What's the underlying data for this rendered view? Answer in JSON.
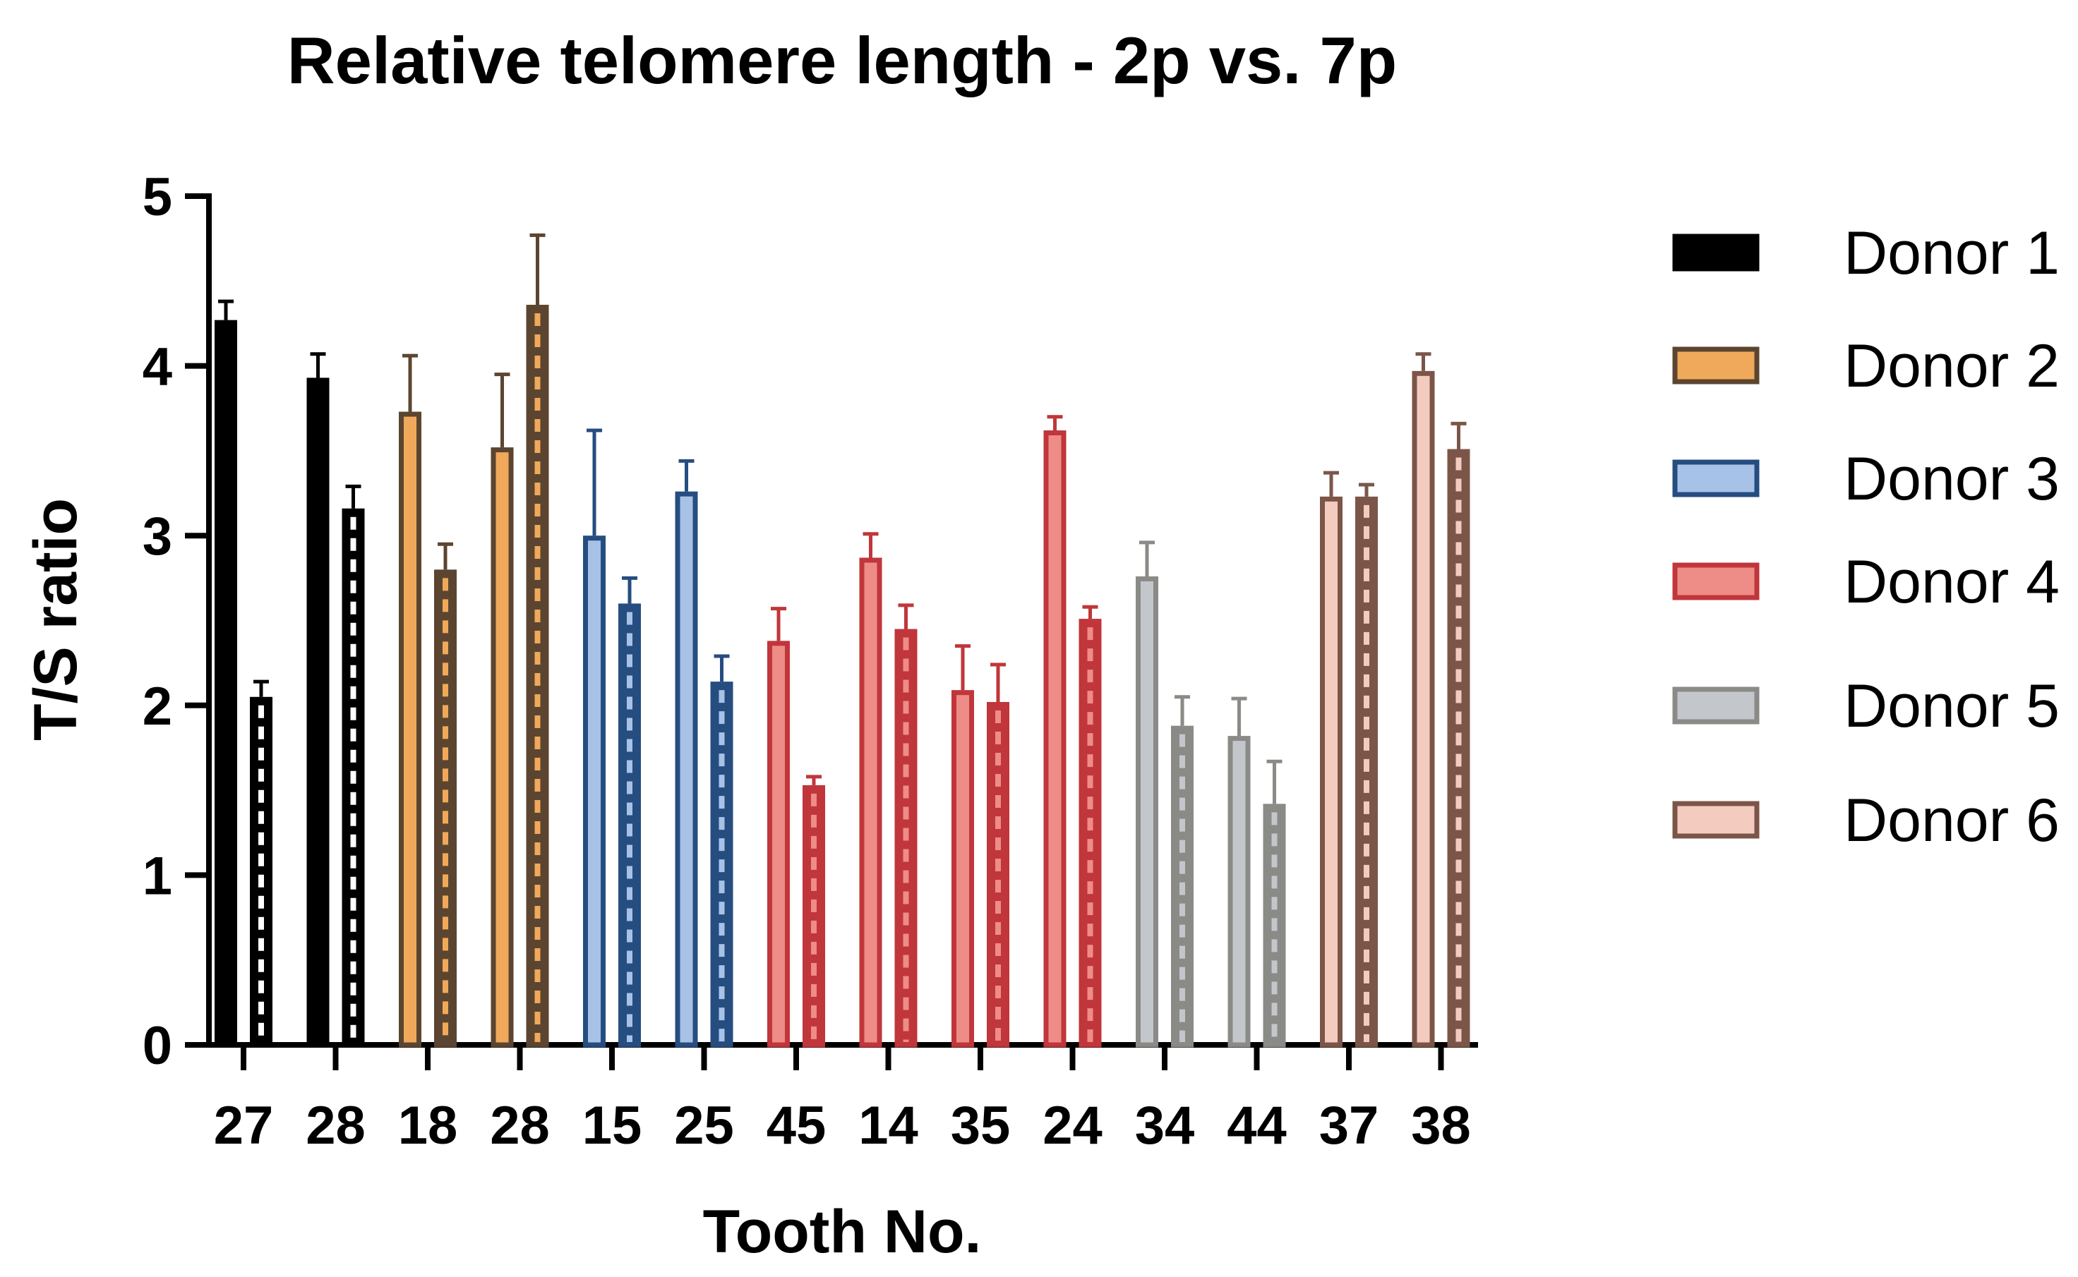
{
  "chart_data": {
    "type": "bar",
    "title": "Relative telomere length - 2p vs. 7p",
    "xlabel": "Tooth No.",
    "ylabel": "T/S ratio",
    "ylim": [
      0,
      5
    ],
    "yticks": [
      "0",
      "1",
      "2",
      "3",
      "4",
      "5"
    ],
    "legend_position": "right",
    "categories": [
      "27",
      "28",
      "18",
      "28",
      "15",
      "25",
      "45",
      "14",
      "35",
      "24",
      "34",
      "44",
      "37",
      "38"
    ],
    "category_donor": [
      1,
      1,
      2,
      2,
      3,
      3,
      4,
      4,
      4,
      4,
      5,
      5,
      6,
      6
    ],
    "series": [
      {
        "name": "2p",
        "style": "solid",
        "values": [
          4.27,
          3.93,
          3.73,
          3.52,
          3.0,
          3.26,
          2.38,
          2.87,
          2.09,
          3.62,
          2.76,
          1.82,
          3.23,
          3.97
        ],
        "errors": [
          0.11,
          0.14,
          0.33,
          0.43,
          0.62,
          0.18,
          0.19,
          0.14,
          0.26,
          0.08,
          0.2,
          0.22,
          0.14,
          0.1
        ]
      },
      {
        "name": "7p",
        "style": "dashed",
        "values": [
          2.05,
          3.16,
          2.8,
          4.36,
          2.6,
          2.14,
          1.53,
          2.45,
          2.02,
          2.51,
          1.88,
          1.42,
          3.23,
          3.51
        ],
        "errors": [
          0.09,
          0.13,
          0.15,
          0.41,
          0.15,
          0.15,
          0.05,
          0.14,
          0.22,
          0.07,
          0.17,
          0.25,
          0.07,
          0.15
        ]
      }
    ],
    "donors": [
      {
        "label": "Donor 1",
        "fill": "#000000",
        "edge": "#000000",
        "dash": "#ffffff"
      },
      {
        "label": "Donor 2",
        "fill": "#F0A95A",
        "edge": "#5C4530",
        "dash": "#F0A95A"
      },
      {
        "label": "Donor 3",
        "fill": "#A7C2E6",
        "edge": "#264D80",
        "dash": "#A7C2E6"
      },
      {
        "label": "Donor 4",
        "fill": "#EE8C88",
        "edge": "#C0363A",
        "dash": "#EE8C88"
      },
      {
        "label": "Donor 5",
        "fill": "#C3C7CC",
        "edge": "#8A8B86",
        "dash": "#C3C7CC"
      },
      {
        "label": "Donor 6",
        "fill": "#F3CCBF",
        "edge": "#7B5648",
        "dash": "#F3CCBF"
      }
    ]
  }
}
